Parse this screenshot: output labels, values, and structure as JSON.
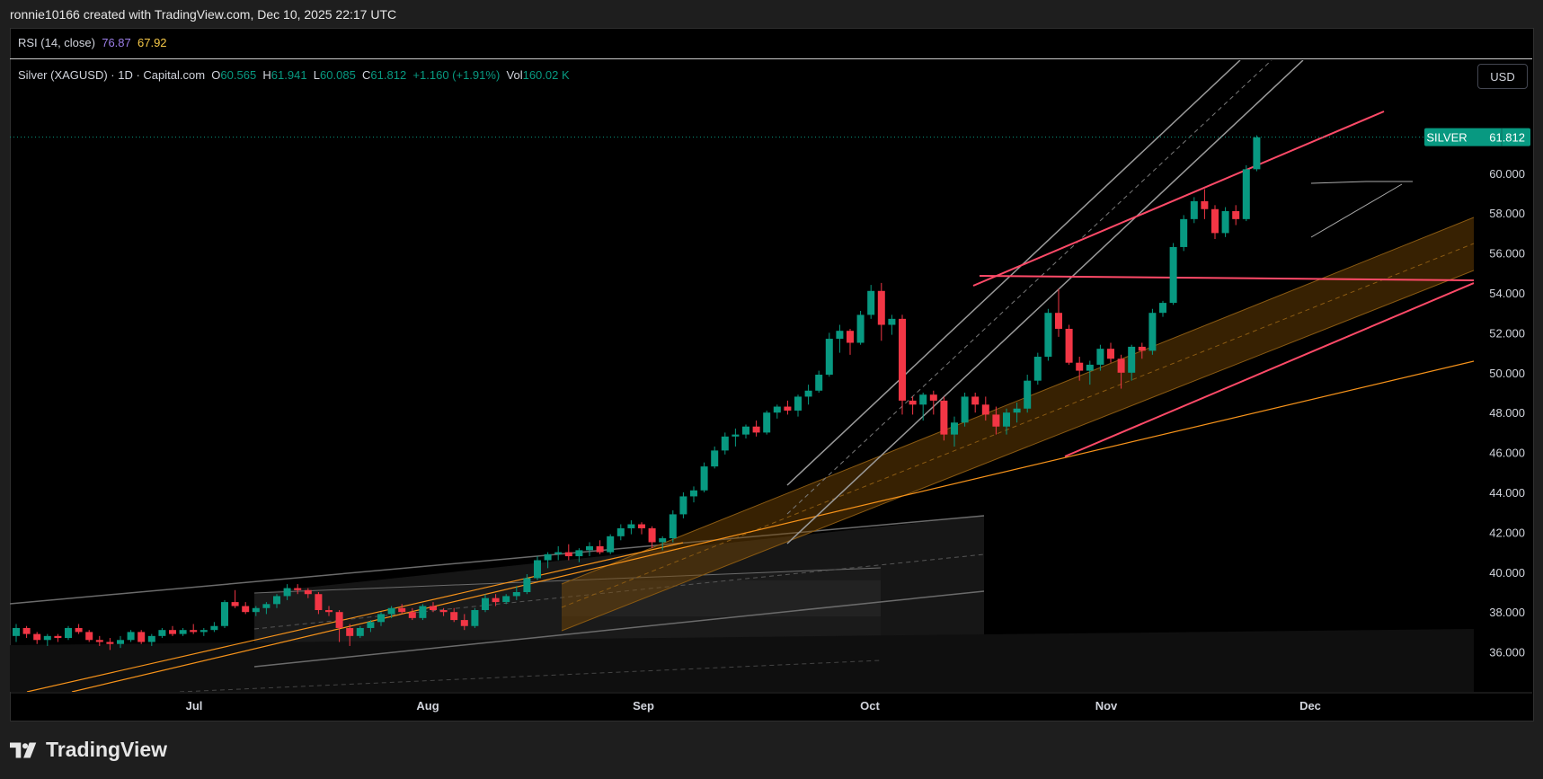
{
  "caption": "ronnie10166 created with TradingView.com, Dec 10, 2025 22:17 UTC",
  "rsi": {
    "label": "RSI (14, close)",
    "v1": "76.87",
    "v2": "67.92",
    "c1": "#9c7ee8",
    "c2": "#f7c948"
  },
  "legend": {
    "symbol": "Silver (XAGUSD) · 1D · Capital.com",
    "o_label": "O",
    "o": "60.565",
    "h_label": "H",
    "h": "61.941",
    "l_label": "L",
    "l": "60.085",
    "c_label": "C",
    "c": "61.812",
    "change": "+1.160 (+1.91%)",
    "vol_label": "Vol",
    "vol": "160.02 K"
  },
  "currency": "USD",
  "brand": "TradingView",
  "colors": {
    "up": "#089981",
    "down": "#f23645",
    "channel": "#f7931a",
    "pink": "#ff4a68",
    "grey": "#8c8c8c"
  },
  "chart_data": {
    "type": "candlestick",
    "symbol": "Silver (XAGUSD)",
    "ylim": [
      34,
      64
    ],
    "y_ticks": [
      "36.000",
      "38.000",
      "40.000",
      "42.000",
      "44.000",
      "46.000",
      "48.000",
      "50.000",
      "52.000",
      "54.000",
      "56.000",
      "58.000",
      "60.000"
    ],
    "x_labels": [
      "Jul",
      "Aug",
      "Sep",
      "Oct",
      "Nov",
      "Dec"
    ],
    "last_price": {
      "label": "SILVER",
      "value": "61.812",
      "price": 61.812
    },
    "candles": [
      [
        36.8,
        37.4,
        36.5,
        37.2
      ],
      [
        37.2,
        37.3,
        36.7,
        36.9
      ],
      [
        36.9,
        37.0,
        36.4,
        36.6
      ],
      [
        36.6,
        36.9,
        36.3,
        36.8
      ],
      [
        36.8,
        36.9,
        36.5,
        36.7
      ],
      [
        36.7,
        37.3,
        36.6,
        37.2
      ],
      [
        37.2,
        37.4,
        36.9,
        37.0
      ],
      [
        37.0,
        37.1,
        36.5,
        36.6
      ],
      [
        36.6,
        36.8,
        36.3,
        36.5
      ],
      [
        36.5,
        36.7,
        36.1,
        36.4
      ],
      [
        36.4,
        36.8,
        36.2,
        36.6
      ],
      [
        36.6,
        37.1,
        36.5,
        37.0
      ],
      [
        37.0,
        37.1,
        36.4,
        36.5
      ],
      [
        36.5,
        36.9,
        36.3,
        36.8
      ],
      [
        36.8,
        37.2,
        36.7,
        37.1
      ],
      [
        37.1,
        37.3,
        36.8,
        36.9
      ],
      [
        36.9,
        37.2,
        36.8,
        37.1
      ],
      [
        37.1,
        37.4,
        36.9,
        37.0
      ],
      [
        37.0,
        37.2,
        36.8,
        37.1
      ],
      [
        37.1,
        37.5,
        37.0,
        37.3
      ],
      [
        37.3,
        38.6,
        37.2,
        38.5
      ],
      [
        38.5,
        39.1,
        38.2,
        38.3
      ],
      [
        38.3,
        38.5,
        37.9,
        38.0
      ],
      [
        38.0,
        38.3,
        37.8,
        38.2
      ],
      [
        38.2,
        38.5,
        37.9,
        38.4
      ],
      [
        38.4,
        38.9,
        38.2,
        38.8
      ],
      [
        38.8,
        39.4,
        38.6,
        39.2
      ],
      [
        39.2,
        39.4,
        38.9,
        39.1
      ],
      [
        39.1,
        39.2,
        38.7,
        38.9
      ],
      [
        38.9,
        39.0,
        37.9,
        38.1
      ],
      [
        38.1,
        38.3,
        37.8,
        38.0
      ],
      [
        38.0,
        38.1,
        36.5,
        37.2
      ],
      [
        37.2,
        37.4,
        36.3,
        36.8
      ],
      [
        36.8,
        37.3,
        36.7,
        37.2
      ],
      [
        37.2,
        37.6,
        37.0,
        37.5
      ],
      [
        37.5,
        38.0,
        37.3,
        37.9
      ],
      [
        37.9,
        38.3,
        37.7,
        38.2
      ],
      [
        38.2,
        38.4,
        37.9,
        38.0
      ],
      [
        38.0,
        38.2,
        37.6,
        37.7
      ],
      [
        37.7,
        38.4,
        37.6,
        38.3
      ],
      [
        38.3,
        38.5,
        38.0,
        38.1
      ],
      [
        38.1,
        38.2,
        37.8,
        38.0
      ],
      [
        38.0,
        38.2,
        37.5,
        37.6
      ],
      [
        37.6,
        37.9,
        37.1,
        37.3
      ],
      [
        37.3,
        38.2,
        37.2,
        38.1
      ],
      [
        38.1,
        38.9,
        38.0,
        38.7
      ],
      [
        38.7,
        38.9,
        38.3,
        38.5
      ],
      [
        38.5,
        38.9,
        38.4,
        38.8
      ],
      [
        38.8,
        39.3,
        38.6,
        39.0
      ],
      [
        39.0,
        39.9,
        38.9,
        39.7
      ],
      [
        39.7,
        40.8,
        39.6,
        40.6
      ],
      [
        40.6,
        41.0,
        40.2,
        40.9
      ],
      [
        40.9,
        41.3,
        40.6,
        41.0
      ],
      [
        41.0,
        41.4,
        40.6,
        40.8
      ],
      [
        40.8,
        41.2,
        40.5,
        41.1
      ],
      [
        41.1,
        41.5,
        40.8,
        41.3
      ],
      [
        41.3,
        41.6,
        40.9,
        41.0
      ],
      [
        41.0,
        41.9,
        40.9,
        41.8
      ],
      [
        41.8,
        42.4,
        41.6,
        42.2
      ],
      [
        42.2,
        42.6,
        41.9,
        42.4
      ],
      [
        42.4,
        42.5,
        41.9,
        42.2
      ],
      [
        42.2,
        42.3,
        41.2,
        41.5
      ],
      [
        41.5,
        41.8,
        41.1,
        41.7
      ],
      [
        41.7,
        43.1,
        41.5,
        42.9
      ],
      [
        42.9,
        44.0,
        42.7,
        43.8
      ],
      [
        43.8,
        44.3,
        43.5,
        44.1
      ],
      [
        44.1,
        45.5,
        44.0,
        45.3
      ],
      [
        45.3,
        46.3,
        45.2,
        46.1
      ],
      [
        46.1,
        47.0,
        45.9,
        46.8
      ],
      [
        46.8,
        47.2,
        46.3,
        46.9
      ],
      [
        46.9,
        47.4,
        46.7,
        47.3
      ],
      [
        47.3,
        47.6,
        46.8,
        47.0
      ],
      [
        47.0,
        48.1,
        46.9,
        48.0
      ],
      [
        48.0,
        48.4,
        47.7,
        48.3
      ],
      [
        48.3,
        48.6,
        47.9,
        48.1
      ],
      [
        48.1,
        48.9,
        47.8,
        48.8
      ],
      [
        48.8,
        49.4,
        48.4,
        49.1
      ],
      [
        49.1,
        50.1,
        49.0,
        49.9
      ],
      [
        49.9,
        52.0,
        49.8,
        51.7
      ],
      [
        51.7,
        52.4,
        51.0,
        52.1
      ],
      [
        52.1,
        52.2,
        50.9,
        51.5
      ],
      [
        51.5,
        53.1,
        51.4,
        52.9
      ],
      [
        52.9,
        54.4,
        52.7,
        54.1
      ],
      [
        54.1,
        54.5,
        51.6,
        52.4
      ],
      [
        52.4,
        52.9,
        51.9,
        52.7
      ],
      [
        52.7,
        52.9,
        47.9,
        48.6
      ],
      [
        48.6,
        48.8,
        47.9,
        48.4
      ],
      [
        48.4,
        49.0,
        47.6,
        48.9
      ],
      [
        48.9,
        49.1,
        47.9,
        48.6
      ],
      [
        48.6,
        48.8,
        46.6,
        46.9
      ],
      [
        46.9,
        47.8,
        46.3,
        47.5
      ],
      [
        47.5,
        49.0,
        47.3,
        48.8
      ],
      [
        48.8,
        49.0,
        48.0,
        48.4
      ],
      [
        48.4,
        48.8,
        47.6,
        47.9
      ],
      [
        47.9,
        48.3,
        46.9,
        47.3
      ],
      [
        47.3,
        48.2,
        46.9,
        48.0
      ],
      [
        48.0,
        48.5,
        47.5,
        48.2
      ],
      [
        48.2,
        49.9,
        48.0,
        49.6
      ],
      [
        49.6,
        51.0,
        49.4,
        50.8
      ],
      [
        50.8,
        53.2,
        50.6,
        53.0
      ],
      [
        53.0,
        54.2,
        51.8,
        52.2
      ],
      [
        52.2,
        52.4,
        50.4,
        50.5
      ],
      [
        50.5,
        50.8,
        49.6,
        50.1
      ],
      [
        50.1,
        50.6,
        49.4,
        50.4
      ],
      [
        50.4,
        51.4,
        50.1,
        51.2
      ],
      [
        51.2,
        51.5,
        50.5,
        50.7
      ],
      [
        50.7,
        50.9,
        49.2,
        50.0
      ],
      [
        50.0,
        51.4,
        49.6,
        51.3
      ],
      [
        51.3,
        51.5,
        50.7,
        51.1
      ],
      [
        51.1,
        53.2,
        50.9,
        53.0
      ],
      [
        53.0,
        53.6,
        52.8,
        53.5
      ],
      [
        53.5,
        56.5,
        53.4,
        56.3
      ],
      [
        56.3,
        57.9,
        56.1,
        57.7
      ],
      [
        57.7,
        58.8,
        57.5,
        58.6
      ],
      [
        58.6,
        59.2,
        57.7,
        58.2
      ],
      [
        58.2,
        58.4,
        56.7,
        57.0
      ],
      [
        57.0,
        58.3,
        56.8,
        58.1
      ],
      [
        58.1,
        58.4,
        57.4,
        57.7
      ],
      [
        57.7,
        60.4,
        57.6,
        60.2
      ],
      [
        60.2,
        61.9,
        60.1,
        61.8
      ]
    ]
  }
}
